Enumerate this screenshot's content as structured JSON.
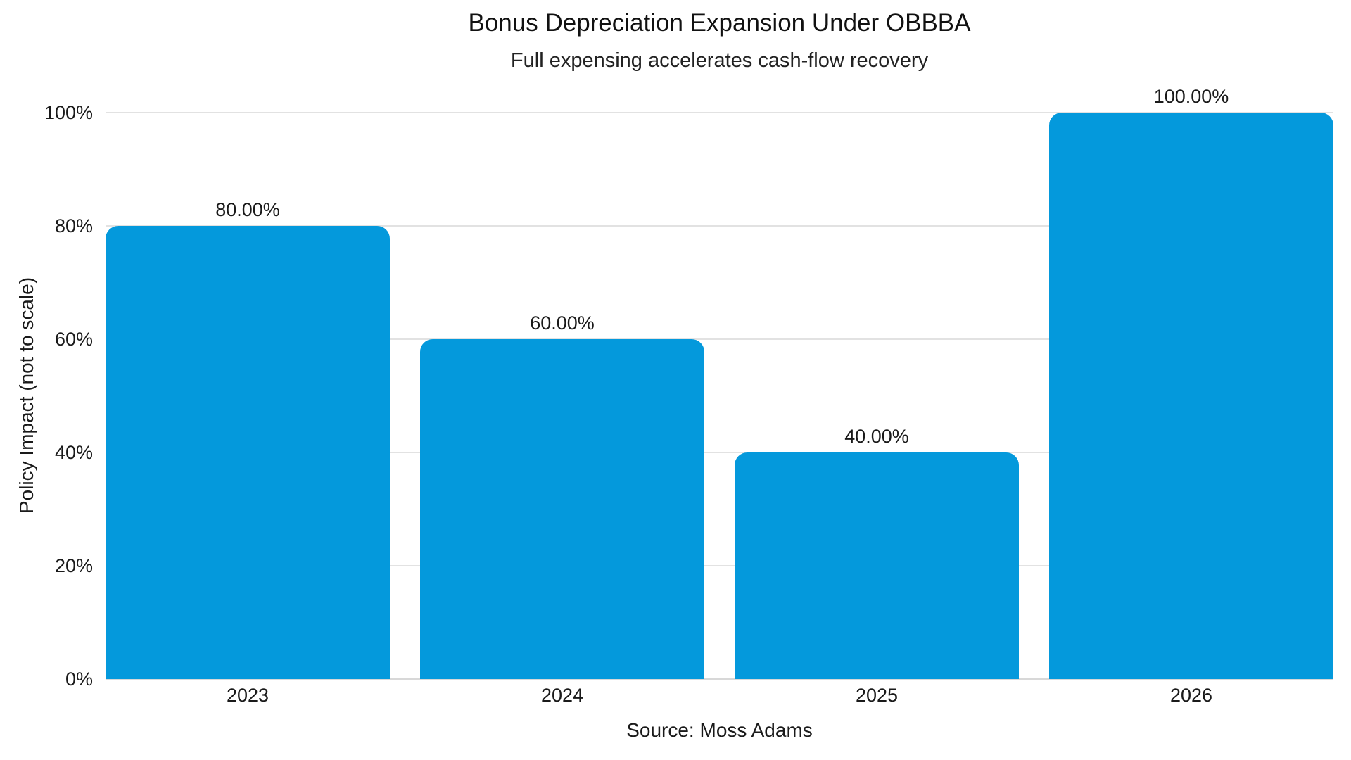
{
  "header": {
    "title": "Bonus Depreciation Expansion Under OBBBA",
    "subtitle": "Full expensing accelerates cash-flow recovery"
  },
  "footer": {
    "source": "Source: Moss Adams"
  },
  "chart_data": {
    "type": "bar",
    "title": "Bonus Depreciation Expansion Under OBBBA",
    "subtitle": "Full expensing accelerates cash-flow recovery",
    "categories": [
      "2023",
      "2024",
      "2025",
      "2026"
    ],
    "values": [
      80,
      60,
      40,
      100
    ],
    "value_labels": [
      "80.00%",
      "60.00%",
      "40.00%",
      "100.00%"
    ],
    "xlabel": "",
    "ylabel": "Policy Impact (not to scale)",
    "ylim": [
      0,
      100
    ],
    "yticks": [
      0,
      20,
      40,
      60,
      80,
      100
    ],
    "ytick_labels": [
      "0%",
      "20%",
      "40%",
      "60%",
      "80%",
      "100%"
    ],
    "legend": null,
    "grid": true,
    "bar_color": "#0499dc",
    "gridline_color": "#e2e2e2",
    "background_color": "#ffffff",
    "text_color": "#1a1a1a",
    "source": "Source: Moss Adams"
  }
}
